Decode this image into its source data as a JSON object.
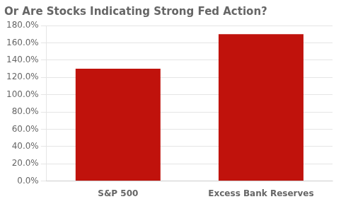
{
  "chart_data": {
    "type": "bar",
    "title": "Or Are Stocks Indicating Strong Fed Action?",
    "categories": [
      "S&P 500",
      "Excess Bank Reserves"
    ],
    "values": [
      130.0,
      170.0
    ],
    "color": "#C0120C",
    "ylim": [
      0,
      180
    ],
    "yticks": [
      {
        "value": 0,
        "label": "0.0%"
      },
      {
        "value": 20,
        "label": "20.0%"
      },
      {
        "value": 40,
        "label": "40.0%"
      },
      {
        "value": 60,
        "label": "60.0%"
      },
      {
        "value": 80,
        "label": "80.0%"
      },
      {
        "value": 100,
        "label": "100.0%"
      },
      {
        "value": 120,
        "label": "120.0%"
      },
      {
        "value": 140,
        "label": "140.0%"
      },
      {
        "value": 160,
        "label": "160.0%"
      },
      {
        "value": 180,
        "label": "180.0%"
      }
    ],
    "grid": true
  }
}
